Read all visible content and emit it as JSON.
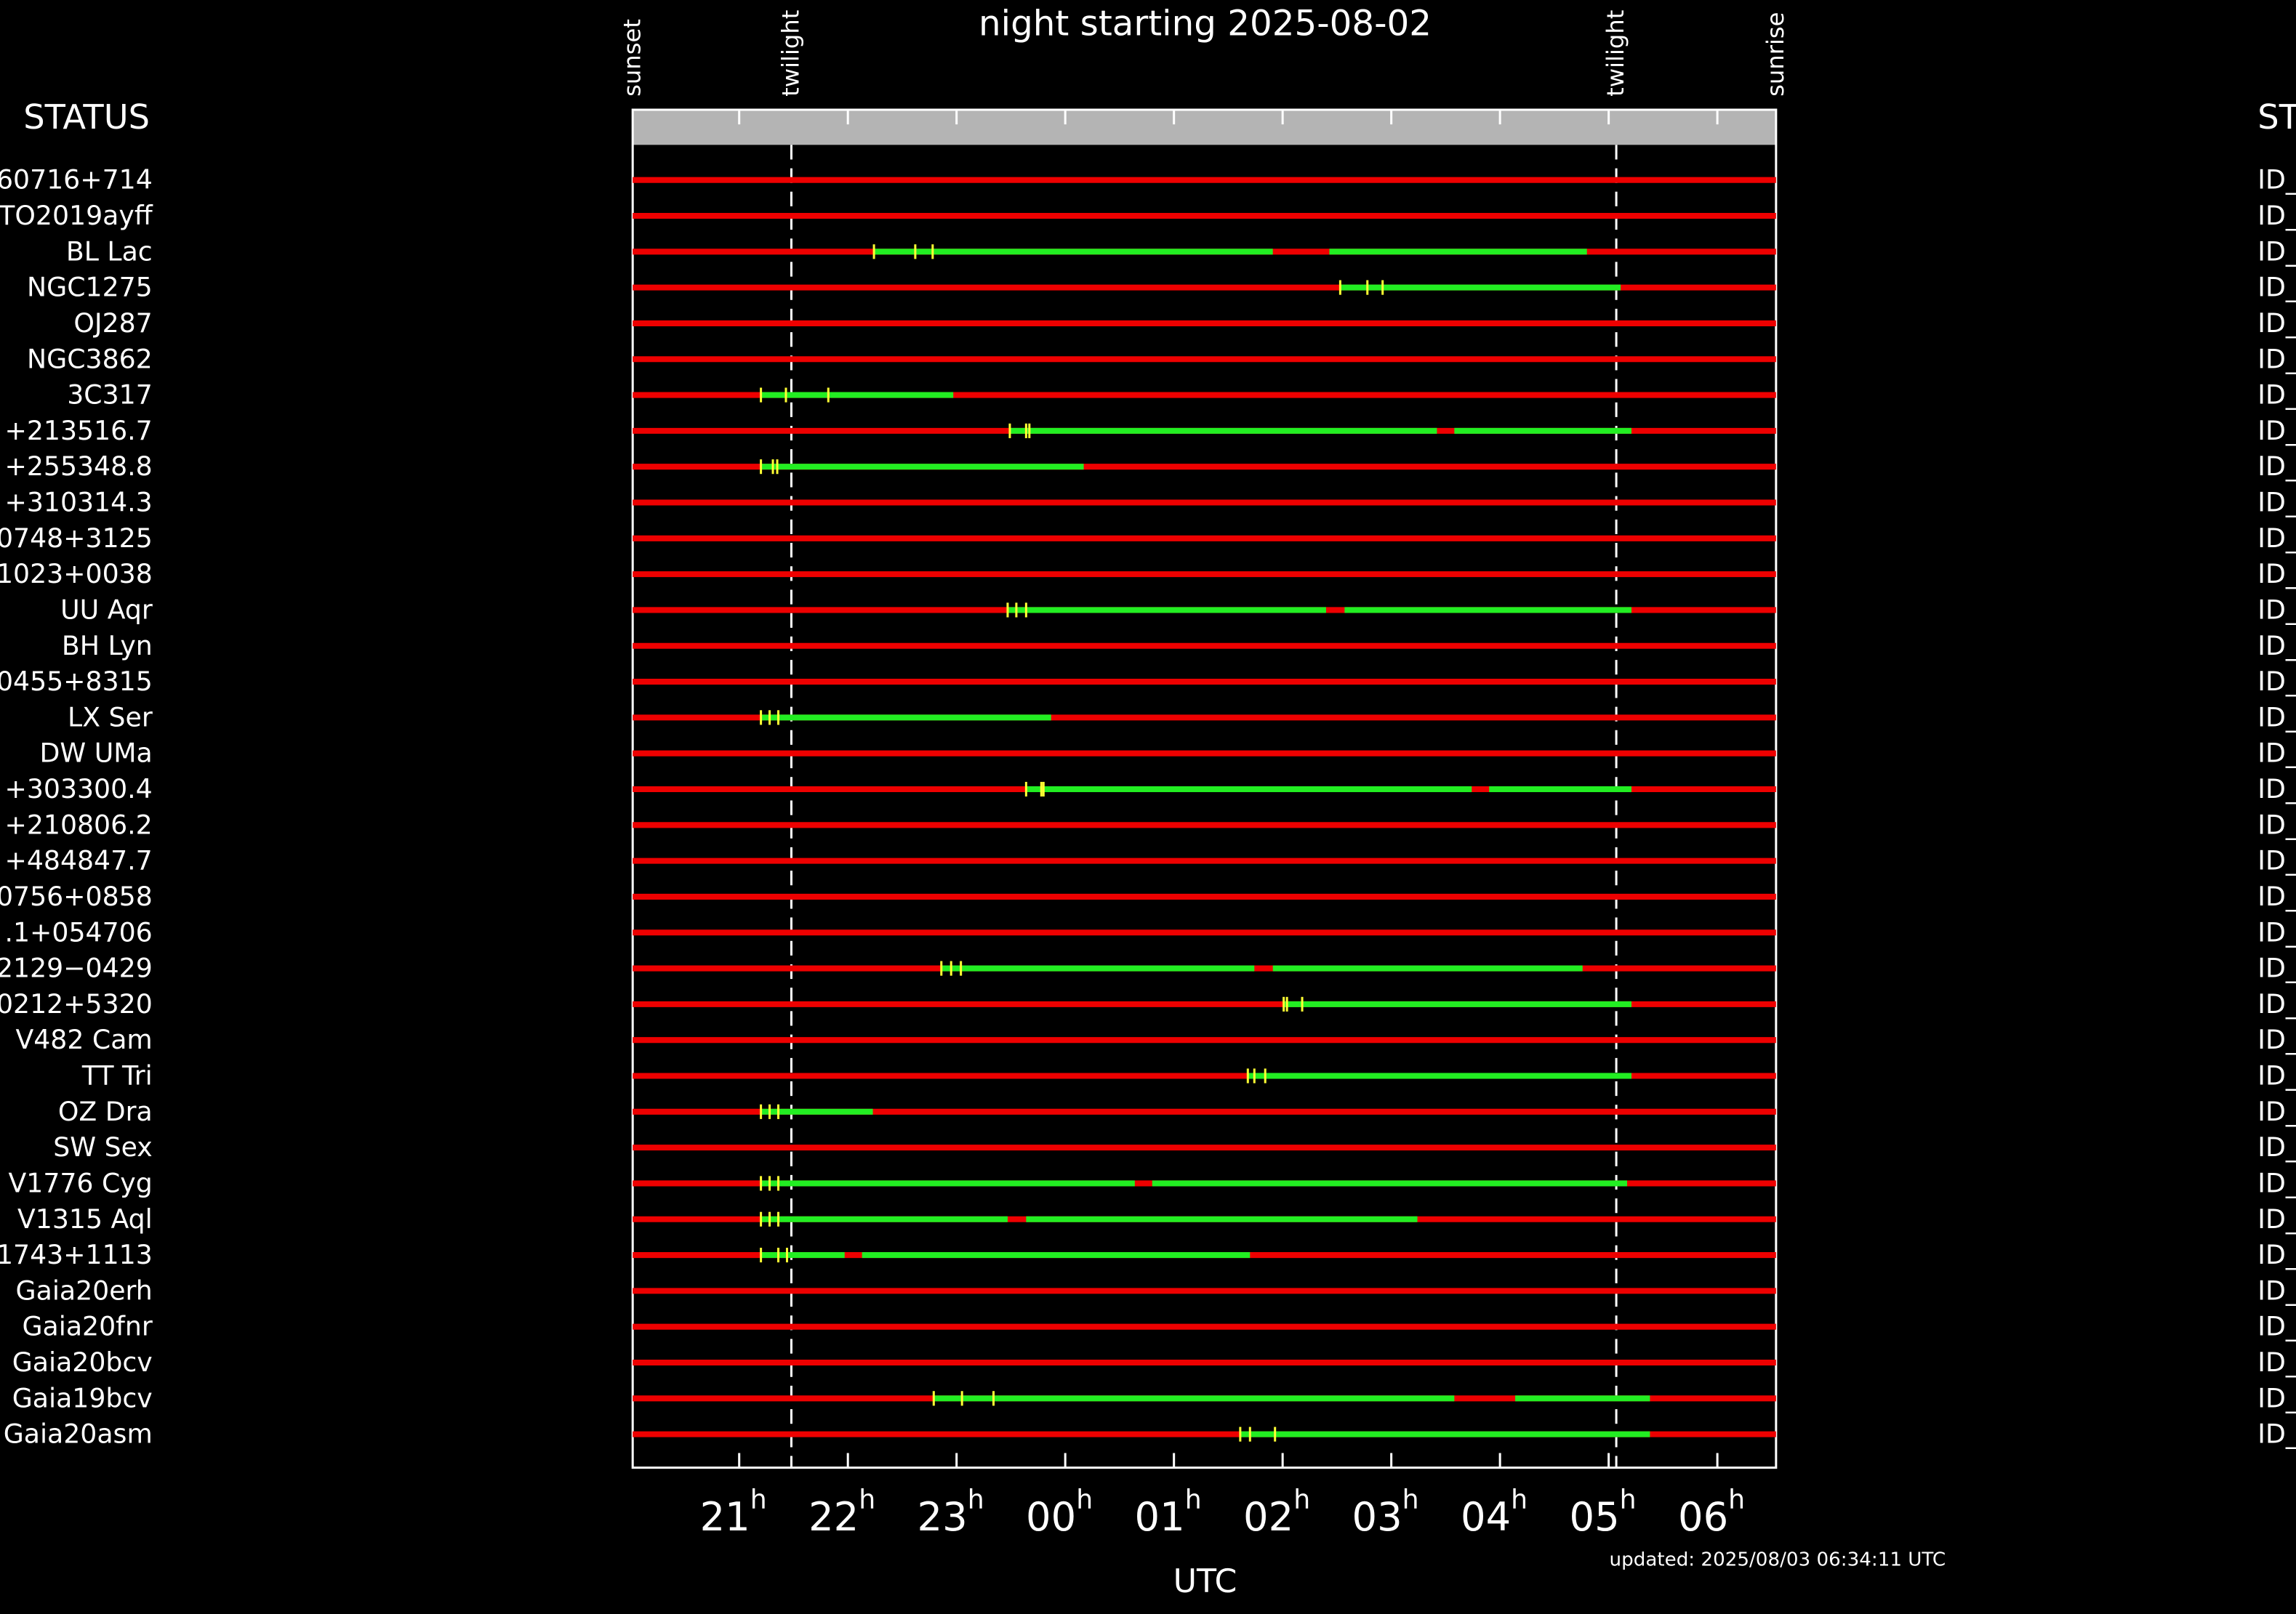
{
  "chart_data": {
    "type": "timeline",
    "title": "night starting 2025-08-02",
    "left_header": "STATUS",
    "right_header": "ST",
    "xlabel": "UTC",
    "footer": "updated: 2025/08/03 06:34:11 UTC",
    "xlim": [
      20.02,
      30.54
    ],
    "xticks": [
      21,
      22,
      23,
      {
        "value": 24,
        "label": "00"
      },
      {
        "value": 25,
        "label": "01"
      },
      {
        "value": 26,
        "label": "02"
      },
      {
        "value": 27,
        "label": "03"
      },
      {
        "value": 28,
        "label": "04"
      },
      {
        "value": 29,
        "label": "05"
      },
      {
        "value": 30,
        "label": "06"
      }
    ],
    "tick_unit": "h",
    "events": [
      {
        "label": "sunset",
        "x": 20.02
      },
      {
        "label": "twilight",
        "x": 21.48
      },
      {
        "label": "twilight",
        "x": 29.07
      },
      {
        "label": "sunrise",
        "x": 30.54
      }
    ],
    "base_color": "#ee0000",
    "segment_color": "#22ee22",
    "mark_color": "#ffff33",
    "rows": [
      {
        "name": "60716+714",
        "id": "ID_",
        "segments": [],
        "marks": []
      },
      {
        "name": "TO2019ayff",
        "id": "ID_",
        "segments": [],
        "marks": []
      },
      {
        "name": "BL Lac",
        "id": "ID_",
        "segments": [
          [
            22.24,
            25.91
          ],
          [
            26.43,
            28.8
          ]
        ],
        "marks": [
          22.24,
          22.62,
          22.78
        ]
      },
      {
        "name": "NGC1275",
        "id": "ID_",
        "segments": [
          [
            26.53,
            29.11
          ]
        ],
        "marks": [
          26.53,
          26.78,
          26.92
        ]
      },
      {
        "name": "OJ287",
        "id": "ID_",
        "segments": [],
        "marks": []
      },
      {
        "name": "NGC3862",
        "id": "ID_",
        "segments": [],
        "marks": []
      },
      {
        "name": "3C317",
        "id": "ID_",
        "segments": [
          [
            21.2,
            22.97
          ]
        ],
        "marks": [
          21.2,
          21.43,
          21.82
        ]
      },
      {
        "name": "+213516.7",
        "id": "ID_",
        "segments": [
          [
            23.49,
            27.42
          ],
          [
            27.58,
            29.21
          ]
        ],
        "marks": [
          23.49,
          23.64,
          23.67
        ]
      },
      {
        "name": "+255348.8",
        "id": "ID_",
        "segments": [
          [
            21.2,
            24.17
          ]
        ],
        "marks": [
          21.2,
          21.31,
          21.35
        ]
      },
      {
        "name": "+310314.3",
        "id": "ID_",
        "segments": [],
        "marks": []
      },
      {
        "name": "0748+3125",
        "id": "ID_",
        "segments": [],
        "marks": []
      },
      {
        "name": "1023+0038",
        "id": "ID_",
        "segments": [],
        "marks": []
      },
      {
        "name": "UU Aqr",
        "id": "ID_",
        "segments": [
          [
            23.47,
            26.4
          ],
          [
            26.57,
            29.21
          ]
        ],
        "marks": [
          23.47,
          23.55,
          23.64
        ]
      },
      {
        "name": "BH Lyn",
        "id": "ID_",
        "segments": [],
        "marks": []
      },
      {
        "name": "0455+8315",
        "id": "ID_",
        "segments": [],
        "marks": []
      },
      {
        "name": "LX Ser",
        "id": "ID_",
        "segments": [
          [
            21.2,
            23.87
          ]
        ],
        "marks": [
          21.2,
          21.28,
          21.36
        ]
      },
      {
        "name": "DW UMa",
        "id": "ID_",
        "segments": [],
        "marks": []
      },
      {
        "name": "+303300.4",
        "id": "ID_",
        "segments": [
          [
            23.64,
            27.74
          ],
          [
            27.9,
            29.21
          ]
        ],
        "marks": [
          23.64,
          23.78,
          23.8
        ]
      },
      {
        "name": "+210806.2",
        "id": "ID_",
        "segments": [],
        "marks": []
      },
      {
        "name": "+484847.7",
        "id": "ID_",
        "segments": [],
        "marks": []
      },
      {
        "name": "0756+0858",
        "id": "ID_",
        "segments": [],
        "marks": []
      },
      {
        "name": ".1+054706",
        "id": "ID_",
        "segments": [],
        "marks": []
      },
      {
        "name": "2129−0429",
        "id": "ID_",
        "segments": [
          [
            22.86,
            25.74
          ],
          [
            25.91,
            28.76
          ]
        ],
        "marks": [
          22.86,
          22.95,
          23.04
        ]
      },
      {
        "name": "0212+5320",
        "id": "ID_",
        "segments": [
          [
            26.01,
            29.21
          ]
        ],
        "marks": [
          26.01,
          26.04,
          26.18
        ]
      },
      {
        "name": "V482 Cam",
        "id": "ID_",
        "segments": [],
        "marks": []
      },
      {
        "name": "TT Tri",
        "id": "ID_",
        "segments": [
          [
            25.68,
            29.21
          ]
        ],
        "marks": [
          25.68,
          25.74,
          25.84
        ]
      },
      {
        "name": "OZ Dra",
        "id": "ID_",
        "segments": [
          [
            21.2,
            22.23
          ]
        ],
        "marks": [
          21.2,
          21.28,
          21.36
        ]
      },
      {
        "name": "SW Sex",
        "id": "ID_",
        "segments": [],
        "marks": []
      },
      {
        "name": "V1776 Cyg",
        "id": "ID_",
        "segments": [
          [
            21.2,
            24.64
          ],
          [
            24.8,
            29.17
          ]
        ],
        "marks": [
          21.2,
          21.28,
          21.36
        ]
      },
      {
        "name": "V1315 Aql",
        "id": "ID_",
        "segments": [
          [
            21.2,
            23.47
          ],
          [
            23.64,
            27.24
          ]
        ],
        "marks": [
          21.2,
          21.28,
          21.36
        ]
      },
      {
        "name": "1743+1113",
        "id": "ID_",
        "segments": [
          [
            21.2,
            21.97
          ],
          [
            22.13,
            25.7
          ]
        ],
        "marks": [
          21.2,
          21.36,
          21.44
        ]
      },
      {
        "name": "Gaia20erh",
        "id": "ID_",
        "segments": [],
        "marks": []
      },
      {
        "name": "Gaia20fnr",
        "id": "ID_",
        "segments": [],
        "marks": []
      },
      {
        "name": "Gaia20bcv",
        "id": "ID_",
        "segments": [],
        "marks": []
      },
      {
        "name": "Gaia19bcv",
        "id": "ID_",
        "segments": [
          [
            22.79,
            27.58
          ],
          [
            28.14,
            29.38
          ]
        ],
        "marks": [
          22.79,
          23.05,
          23.34
        ]
      },
      {
        "name": "Gaia20asm",
        "id": "ID_",
        "segments": [
          [
            25.61,
            29.38
          ]
        ],
        "marks": [
          25.61,
          25.7,
          25.93
        ]
      }
    ]
  }
}
